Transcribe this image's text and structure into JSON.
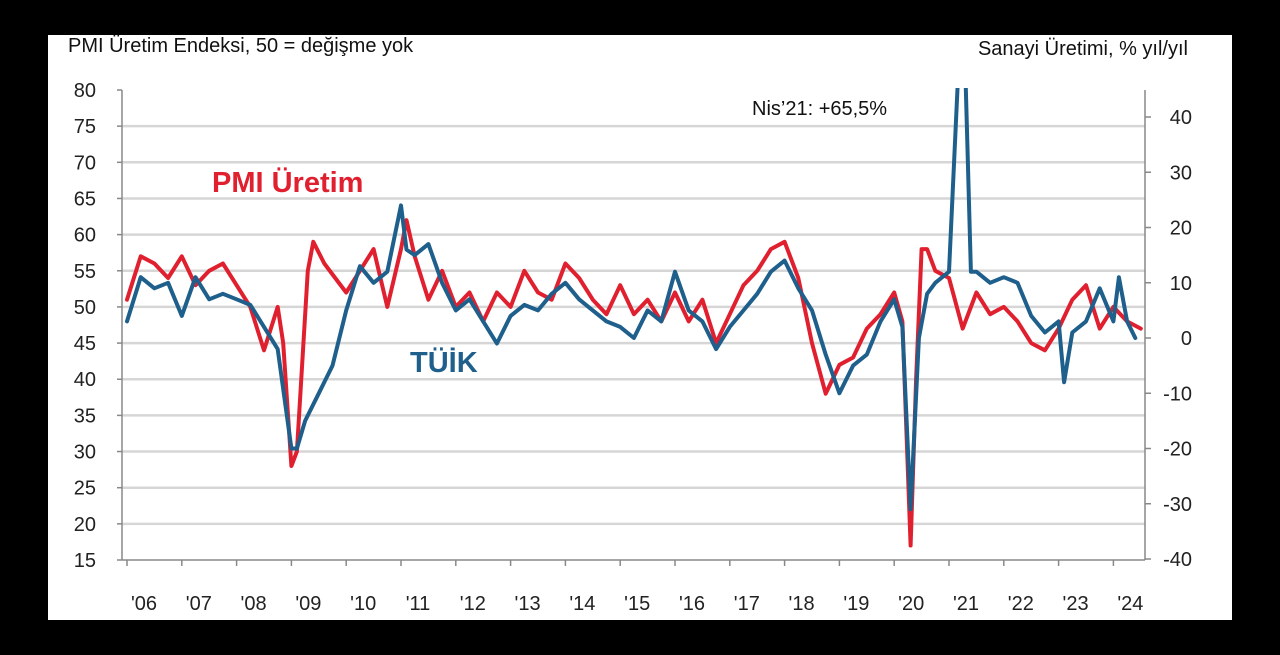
{
  "chart_data": {
    "type": "line",
    "left_axis_title": "PMI Üretim Endeksi, 50 = değişme yok",
    "right_axis_title": "Sanayi Üretimi, % yıl/yıl",
    "left_ylim": [
      15,
      80
    ],
    "right_ylim": [
      -40,
      45
    ],
    "left_ticks": [
      "80",
      "75",
      "70",
      "65",
      "60",
      "55",
      "50",
      "45",
      "40",
      "35",
      "30",
      "25",
      "20",
      "15"
    ],
    "right_ticks": [
      "40",
      "30",
      "20",
      "10",
      "0",
      "-10",
      "-20",
      "-30",
      "-40"
    ],
    "x_ticks": [
      "'06",
      "'07",
      "'08",
      "'09",
      "'10",
      "'11",
      "'12",
      "'13",
      "'14",
      "'15",
      "'16",
      "'17",
      "'18",
      "'19",
      "'20",
      "'21",
      "'22",
      "'23",
      "'24"
    ],
    "annotation": "Nis’21: +65,5%",
    "grid": true,
    "series": [
      {
        "name": "PMI Üretim",
        "axis": "left",
        "color": "#e0202f",
        "x": [
          2006.0,
          2006.25,
          2006.5,
          2006.75,
          2007.0,
          2007.25,
          2007.5,
          2007.75,
          2008.0,
          2008.25,
          2008.5,
          2008.75,
          2008.85,
          2009.0,
          2009.1,
          2009.3,
          2009.4,
          2009.6,
          2009.8,
          2010.0,
          2010.25,
          2010.5,
          2010.75,
          2011.0,
          2011.1,
          2011.25,
          2011.5,
          2011.75,
          2012.0,
          2012.25,
          2012.5,
          2012.75,
          2013.0,
          2013.25,
          2013.5,
          2013.75,
          2014.0,
          2014.25,
          2014.5,
          2014.75,
          2015.0,
          2015.25,
          2015.5,
          2015.75,
          2016.0,
          2016.25,
          2016.5,
          2016.75,
          2017.0,
          2017.25,
          2017.5,
          2017.75,
          2018.0,
          2018.25,
          2018.5,
          2018.75,
          2019.0,
          2019.25,
          2019.5,
          2019.75,
          2020.0,
          2020.15,
          2020.3,
          2020.4,
          2020.5,
          2020.6,
          2020.75,
          2021.0,
          2021.25,
          2021.5,
          2021.75,
          2022.0,
          2022.25,
          2022.5,
          2022.75,
          2023.0,
          2023.25,
          2023.5,
          2023.75,
          2024.0,
          2024.25,
          2024.5
        ],
        "values": [
          51,
          57,
          56,
          54,
          57,
          53,
          55,
          56,
          53,
          50,
          44,
          50,
          45,
          28,
          30,
          55,
          59,
          56,
          54,
          52,
          55,
          58,
          50,
          58,
          62,
          57,
          51,
          55,
          50,
          52,
          48,
          52,
          50,
          55,
          52,
          51,
          56,
          54,
          51,
          49,
          53,
          49,
          51,
          48,
          52,
          48,
          51,
          45,
          49,
          53,
          55,
          58,
          59,
          54,
          45,
          38,
          42,
          43,
          47,
          49,
          52,
          48,
          17,
          40,
          58,
          58,
          55,
          54,
          47,
          52,
          49,
          50,
          48,
          45,
          44,
          47,
          51,
          53,
          47,
          50,
          48,
          47
        ]
      },
      {
        "name": "TÜİK",
        "axis": "right",
        "color": "#1f5f8b",
        "x": [
          2006.0,
          2006.25,
          2006.5,
          2006.75,
          2007.0,
          2007.25,
          2007.5,
          2007.75,
          2008.0,
          2008.25,
          2008.5,
          2008.75,
          2009.0,
          2009.1,
          2009.25,
          2009.5,
          2009.75,
          2010.0,
          2010.25,
          2010.5,
          2010.75,
          2011.0,
          2011.1,
          2011.25,
          2011.5,
          2011.75,
          2012.0,
          2012.25,
          2012.5,
          2012.75,
          2013.0,
          2013.25,
          2013.5,
          2013.75,
          2014.0,
          2014.25,
          2014.5,
          2014.75,
          2015.0,
          2015.25,
          2015.5,
          2015.75,
          2016.0,
          2016.25,
          2016.5,
          2016.75,
          2017.0,
          2017.25,
          2017.5,
          2017.75,
          2018.0,
          2018.25,
          2018.5,
          2018.75,
          2019.0,
          2019.25,
          2019.5,
          2019.75,
          2020.0,
          2020.15,
          2020.3,
          2020.45,
          2020.6,
          2020.75,
          2021.0,
          2021.25,
          2021.4,
          2021.5,
          2021.75,
          2022.0,
          2022.25,
          2022.5,
          2022.75,
          2023.0,
          2023.1,
          2023.25,
          2023.5,
          2023.75,
          2024.0,
          2024.1,
          2024.25,
          2024.4
        ],
        "values": [
          3,
          11,
          9,
          10,
          4,
          11,
          7,
          8,
          7,
          6,
          2,
          -2,
          -20,
          -20,
          -15,
          -10,
          -5,
          5,
          13,
          10,
          12,
          24,
          16,
          15,
          17,
          10,
          5,
          7,
          3,
          -1,
          4,
          6,
          5,
          8,
          10,
          7,
          5,
          3,
          2,
          0,
          5,
          3,
          12,
          5,
          3,
          -2,
          2,
          5,
          8,
          12,
          14,
          9,
          5,
          -3,
          -10,
          -5,
          -3,
          3,
          7,
          2,
          -31,
          0,
          8,
          10,
          12,
          65.5,
          12,
          12,
          10,
          11,
          10,
          4,
          1,
          3,
          -8,
          1,
          3,
          9,
          3,
          11,
          3,
          0
        ]
      }
    ],
    "labels": {
      "pmi": "PMI Üretim",
      "tuik": "TÜİK"
    }
  }
}
